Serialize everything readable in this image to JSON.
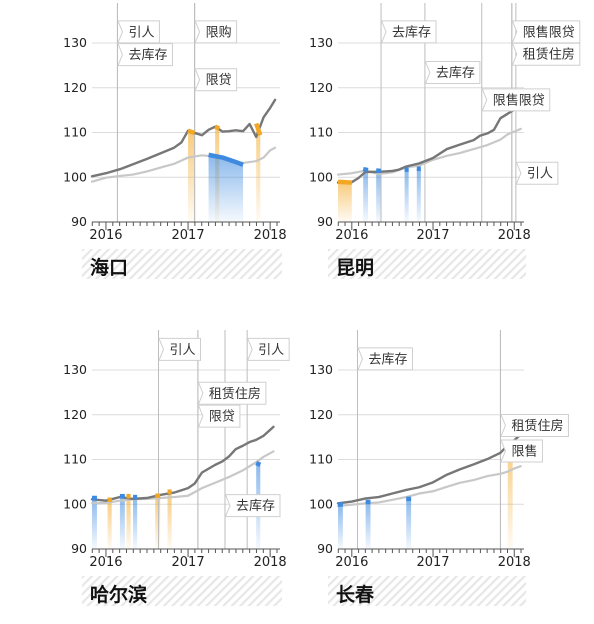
{
  "colors": {
    "line_dark": "#777777",
    "line_light": "#c8c8c8",
    "orange": "#f3a825",
    "blue": "#3d8ae0",
    "gray_bar": "#8f8f8f",
    "hatch": "#e7e7e7"
  },
  "chart_data": [
    {
      "type": "line",
      "title": "海口",
      "xlim": [
        2015.83,
        2018.12
      ],
      "ylim": [
        90,
        130
      ],
      "yticks": [
        90,
        100,
        110,
        120,
        130
      ],
      "xticks": [
        2016,
        2017,
        2018
      ],
      "xtick_labels": [
        "2016",
        "2017",
        "2018"
      ],
      "series": [
        {
          "style": "dark",
          "points": [
            [
              2015.83,
              100.2
            ],
            [
              2016,
              100.9
            ],
            [
              2016.17,
              101.8
            ],
            [
              2016.33,
              102.9
            ],
            [
              2016.5,
              104.1
            ],
            [
              2016.67,
              105.4
            ],
            [
              2016.83,
              106.6
            ],
            [
              2016.92,
              107.8
            ],
            [
              2017,
              110.4
            ],
            [
              2017.08,
              109.9
            ],
            [
              2017.17,
              109.4
            ],
            [
              2017.25,
              110.6
            ],
            [
              2017.33,
              111.3
            ],
            [
              2017.42,
              110.2
            ],
            [
              2017.5,
              110.3
            ],
            [
              2017.58,
              110.5
            ],
            [
              2017.67,
              110.3
            ],
            [
              2017.75,
              111.9
            ],
            [
              2017.83,
              109
            ],
            [
              2017.92,
              113.4
            ],
            [
              2018,
              115.5
            ],
            [
              2018.06,
              117.3
            ]
          ]
        },
        {
          "style": "light",
          "points": [
            [
              2015.83,
              99
            ],
            [
              2016,
              99.9
            ],
            [
              2016.17,
              100.3
            ],
            [
              2016.33,
              100.6
            ],
            [
              2016.5,
              101.3
            ],
            [
              2016.67,
              102.2
            ],
            [
              2016.83,
              103
            ],
            [
              2017,
              104.4
            ],
            [
              2017.17,
              104.9
            ],
            [
              2017.33,
              104.6
            ],
            [
              2017.5,
              103.6
            ],
            [
              2017.67,
              103.2
            ],
            [
              2017.83,
              103.6
            ],
            [
              2017.92,
              104.4
            ],
            [
              2018,
              106
            ],
            [
              2018.06,
              106.6
            ]
          ]
        }
      ],
      "highlights": [
        {
          "color": "orange",
          "points": [
            [
              2017,
              110.4
            ],
            [
              2017.08,
              109.9
            ]
          ]
        },
        {
          "color": "orange",
          "points": [
            [
              2017.33,
              111.3
            ],
            [
              2017.38,
              110.9
            ]
          ]
        },
        {
          "color": "blue",
          "points": [
            [
              2017.25,
              105
            ],
            [
              2017.42,
              104.4
            ],
            [
              2017.58,
              103.4
            ],
            [
              2017.67,
              102.8
            ]
          ]
        },
        {
          "color": "orange",
          "points": [
            [
              2017.83,
              112
            ],
            [
              2017.88,
              109.4
            ]
          ]
        }
      ],
      "policy_lines": [
        {
          "x": 2016.14,
          "label": "引人",
          "label_y": 132.5
        },
        {
          "x": 2016.14,
          "label": "去库存",
          "label_y": 127.4
        },
        {
          "x": 2017.08,
          "label": "限购",
          "label_y": 132.5
        },
        {
          "x": 2017.08,
          "label": "限贷",
          "label_y": 121.8
        }
      ]
    },
    {
      "type": "line",
      "title": "昆明",
      "xlim": [
        2015.83,
        2018.12
      ],
      "ylim": [
        90,
        130
      ],
      "yticks": [
        90,
        100,
        110,
        120,
        130
      ],
      "xticks": [
        2016,
        2017,
        2018
      ],
      "xtick_labels": [
        "2016",
        "2017",
        "2018"
      ],
      "series": [
        {
          "style": "dark",
          "points": [
            [
              2015.83,
              98.8
            ],
            [
              2016,
              98.9
            ],
            [
              2016.08,
              99.8
            ],
            [
              2016.17,
              101.2
            ],
            [
              2016.33,
              101.2
            ],
            [
              2016.5,
              101.4
            ],
            [
              2016.58,
              101.7
            ],
            [
              2016.67,
              102.4
            ],
            [
              2016.83,
              103.1
            ],
            [
              2017,
              104.3
            ],
            [
              2017.17,
              106.3
            ],
            [
              2017.33,
              107.3
            ],
            [
              2017.5,
              108.3
            ],
            [
              2017.58,
              109.3
            ],
            [
              2017.67,
              109.8
            ],
            [
              2017.75,
              110.6
            ],
            [
              2017.83,
              113.2
            ],
            [
              2018,
              115.1
            ],
            [
              2018.08,
              116.6
            ]
          ]
        },
        {
          "style": "light",
          "points": [
            [
              2015.83,
              100.6
            ],
            [
              2016,
              100.9
            ],
            [
              2016.17,
              101.5
            ],
            [
              2016.33,
              100.7
            ],
            [
              2016.5,
              101.1
            ],
            [
              2016.67,
              102.2
            ],
            [
              2016.83,
              102.6
            ],
            [
              2017,
              103.9
            ],
            [
              2017.17,
              104.8
            ],
            [
              2017.33,
              105.4
            ],
            [
              2017.5,
              106.3
            ],
            [
              2017.67,
              107.2
            ],
            [
              2017.83,
              108.4
            ],
            [
              2017.92,
              109.6
            ],
            [
              2018,
              110.2
            ],
            [
              2018.08,
              110.8
            ]
          ]
        }
      ],
      "highlights": [
        {
          "color": "orange",
          "points": [
            [
              2015.83,
              99
            ],
            [
              2016,
              98.8
            ]
          ]
        },
        {
          "color": "blue",
          "points": [
            [
              2016.14,
              101.8
            ],
            [
              2016.2,
              101.6
            ]
          ]
        },
        {
          "color": "blue",
          "points": [
            [
              2016.3,
              101.5
            ],
            [
              2016.36,
              101.4
            ]
          ]
        },
        {
          "color": "blue",
          "points": [
            [
              2016.65,
              101.7
            ],
            [
              2016.7,
              101.7
            ]
          ]
        },
        {
          "color": "blue",
          "points": [
            [
              2016.8,
              101.9
            ],
            [
              2016.85,
              101.9
            ]
          ]
        }
      ],
      "policy_lines": [
        {
          "x": 2016.36,
          "label": "去库存",
          "label_y": 132.5
        },
        {
          "x": 2016.9,
          "label": "去库存",
          "label_y": 123.4
        },
        {
          "x": 2017.97,
          "label": "限售限贷",
          "label_y": 132.5
        },
        {
          "x": 2017.97,
          "label": "租赁住房",
          "label_y": 127.5
        },
        {
          "x": 2017.6,
          "label": "限售限贷",
          "label_y": 117.3
        },
        {
          "x": 2018.02,
          "label": "引人",
          "label_y": 100.9
        }
      ]
    },
    {
      "type": "line",
      "title": "哈尔滨",
      "xlim": [
        2015.83,
        2018.12
      ],
      "ylim": [
        90,
        130
      ],
      "yticks": [
        90,
        100,
        110,
        120,
        130
      ],
      "xticks": [
        2016,
        2017,
        2018
      ],
      "xtick_labels": [
        "2016",
        "2017",
        "2018"
      ],
      "series": [
        {
          "style": "dark",
          "points": [
            [
              2015.83,
              101.1
            ],
            [
              2016,
              100.8
            ],
            [
              2016.17,
              101.6
            ],
            [
              2016.33,
              101.2
            ],
            [
              2016.5,
              101.4
            ],
            [
              2016.67,
              102.1
            ],
            [
              2016.83,
              102.6
            ],
            [
              2017,
              103.6
            ],
            [
              2017.08,
              104.6
            ],
            [
              2017.17,
              107.1
            ],
            [
              2017.33,
              108.8
            ],
            [
              2017.42,
              109.6
            ],
            [
              2017.5,
              110.7
            ],
            [
              2017.58,
              112.3
            ],
            [
              2017.67,
              113.1
            ],
            [
              2017.75,
              113.9
            ],
            [
              2017.83,
              114.4
            ],
            [
              2017.92,
              115.3
            ],
            [
              2018.04,
              117.3
            ]
          ]
        },
        {
          "style": "light",
          "points": [
            [
              2015.83,
              100.2
            ],
            [
              2016,
              100.3
            ],
            [
              2016.17,
              100.8
            ],
            [
              2016.33,
              101.1
            ],
            [
              2016.5,
              101.2
            ],
            [
              2016.67,
              101.4
            ],
            [
              2016.83,
              101.6
            ],
            [
              2017,
              101.9
            ],
            [
              2017.17,
              103.6
            ],
            [
              2017.33,
              104.8
            ],
            [
              2017.5,
              106.1
            ],
            [
              2017.67,
              107.6
            ],
            [
              2017.83,
              109.4
            ],
            [
              2017.92,
              110.6
            ],
            [
              2018.04,
              111.8
            ]
          ]
        }
      ],
      "highlights": [
        {
          "color": "blue",
          "points": [
            [
              2015.83,
              101.4
            ],
            [
              2015.89,
              101.4
            ]
          ]
        },
        {
          "color": "orange",
          "points": [
            [
              2016.02,
              101
            ],
            [
              2016.07,
              101
            ]
          ]
        },
        {
          "color": "blue",
          "points": [
            [
              2016.17,
              101.8
            ],
            [
              2016.23,
              101.8
            ]
          ]
        },
        {
          "color": "orange",
          "points": [
            [
              2016.25,
              101.8
            ],
            [
              2016.3,
              101.8
            ]
          ]
        },
        {
          "color": "blue",
          "points": [
            [
              2016.33,
              101.6
            ],
            [
              2016.38,
              101.6
            ]
          ]
        },
        {
          "color": "orange",
          "points": [
            [
              2016.6,
              101.9
            ],
            [
              2016.66,
              101.9
            ]
          ]
        },
        {
          "color": "orange",
          "points": [
            [
              2016.75,
              102.8
            ],
            [
              2016.8,
              102.8
            ]
          ]
        },
        {
          "color": "blue",
          "points": [
            [
              2017.83,
              109.2
            ],
            [
              2017.88,
              108.8
            ]
          ]
        }
      ],
      "policy_lines": [
        {
          "x": 2016.64,
          "label": "引人",
          "label_y": 134.6
        },
        {
          "x": 2017.72,
          "label": "引人",
          "label_y": 134.6
        },
        {
          "x": 2017.12,
          "label": "租赁住房",
          "label_y": 124.8
        },
        {
          "x": 2017.12,
          "label": "限贷",
          "label_y": 119.7
        },
        {
          "x": 2017.45,
          "label": "去库存",
          "label_y": 99.7
        }
      ]
    },
    {
      "type": "line",
      "title": "长春",
      "xlim": [
        2015.83,
        2018.12
      ],
      "ylim": [
        90,
        130
      ],
      "yticks": [
        90,
        100,
        110,
        120,
        130
      ],
      "xticks": [
        2016,
        2017,
        2018
      ],
      "xtick_labels": [
        "2016",
        "2017",
        "2018"
      ],
      "series": [
        {
          "style": "dark",
          "points": [
            [
              2015.83,
              100.2
            ],
            [
              2016,
              100.6
            ],
            [
              2016.17,
              101.3
            ],
            [
              2016.33,
              101.6
            ],
            [
              2016.5,
              102.4
            ],
            [
              2016.67,
              103.2
            ],
            [
              2016.83,
              103.8
            ],
            [
              2017,
              104.9
            ],
            [
              2017.17,
              106.6
            ],
            [
              2017.33,
              107.8
            ],
            [
              2017.5,
              108.9
            ],
            [
              2017.67,
              110.1
            ],
            [
              2017.83,
              111.5
            ],
            [
              2017.92,
              113.2
            ],
            [
              2018,
              114.3
            ],
            [
              2018.08,
              115.6
            ]
          ]
        },
        {
          "style": "light",
          "points": [
            [
              2015.83,
              99.6
            ],
            [
              2016,
              99.9
            ],
            [
              2016.17,
              100.2
            ],
            [
              2016.33,
              100.4
            ],
            [
              2016.5,
              101
            ],
            [
              2016.67,
              101.6
            ],
            [
              2016.83,
              102.4
            ],
            [
              2017,
              102.9
            ],
            [
              2017.17,
              103.9
            ],
            [
              2017.33,
              104.8
            ],
            [
              2017.5,
              105.4
            ],
            [
              2017.67,
              106.3
            ],
            [
              2017.83,
              106.8
            ],
            [
              2017.92,
              107.3
            ],
            [
              2018,
              108
            ],
            [
              2018.08,
              108.5
            ]
          ]
        }
      ],
      "highlights": [
        {
          "color": "blue",
          "points": [
            [
              2015.83,
              99.9
            ],
            [
              2015.89,
              100
            ]
          ]
        },
        {
          "color": "blue",
          "points": [
            [
              2016.17,
              100.5
            ],
            [
              2016.23,
              100.5
            ]
          ]
        },
        {
          "color": "blue",
          "points": [
            [
              2016.67,
              101.2
            ],
            [
              2016.73,
              101.2
            ]
          ]
        },
        {
          "color": "orange",
          "points": [
            [
              2017.92,
              113.5
            ],
            [
              2017.98,
              113.7
            ]
          ]
        }
      ],
      "policy_lines": [
        {
          "x": 2016.07,
          "label": "去库存",
          "label_y": 132.5
        },
        {
          "x": 2017.83,
          "label": "租赁住房",
          "label_y": 117.6
        },
        {
          "x": 2017.83,
          "label": "限售",
          "label_y": 111.9
        }
      ]
    }
  ]
}
